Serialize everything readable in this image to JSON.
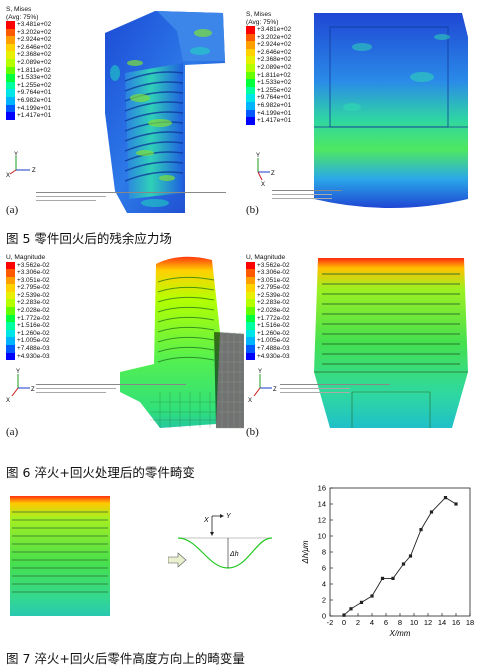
{
  "figure5": {
    "caption": "图 5 零件回火后的残余应力场",
    "panel_a": {
      "letter": "(a)",
      "legend_title": "S, Mises",
      "legend_subtitle": "(Avg: 75%)",
      "legend_values": [
        "+3.481e+02",
        "+3.202e+02",
        "+2.924e+02",
        "+2.646e+02",
        "+2.368e+02",
        "+2.089e+02",
        "+1.811e+02",
        "+1.533e+02",
        "+1.255e+02",
        "+9.764e+01",
        "+6.982e+01",
        "+4.199e+01",
        "+1.417e+01"
      ],
      "axes": {
        "y": "Y",
        "x": "X",
        "z": "Z"
      }
    },
    "panel_b": {
      "letter": "(b)",
      "legend_title": "S, Mises",
      "legend_subtitle": "(Avg: 75%)",
      "legend_values": [
        "+3.481e+02",
        "+3.202e+02",
        "+2.924e+02",
        "+2.646e+02",
        "+2.368e+02",
        "+2.089e+02",
        "+1.811e+02",
        "+1.533e+02",
        "+1.255e+02",
        "+9.764e+01",
        "+6.982e+01",
        "+4.199e+01",
        "+1.417e+01"
      ],
      "axes": {
        "y": "Y",
        "x": "X",
        "z": "Z"
      }
    }
  },
  "figure6": {
    "caption": "图 6 淬火+回火处理后的零件畸变",
    "panel_a": {
      "letter": "(a)",
      "legend_title": "U, Magnitude",
      "legend_values": [
        "+3.562e-02",
        "+3.306e-02",
        "+3.051e-02",
        "+2.795e-02",
        "+2.539e-02",
        "+2.283e-02",
        "+2.028e-02",
        "+1.772e-02",
        "+1.516e-02",
        "+1.260e-02",
        "+1.005e-02",
        "+7.488e-03",
        "+4.930e-03"
      ],
      "axes": {
        "y": "Y",
        "x": "X",
        "z": "Z"
      }
    },
    "panel_b": {
      "letter": "(b)",
      "legend_title": "U, Magnitude",
      "legend_values": [
        "+3.562e-02",
        "+3.306e-02",
        "+3.051e-02",
        "+2.795e-02",
        "+2.539e-02",
        "+2.283e-02",
        "+2.028e-02",
        "+1.772e-02",
        "+1.516e-02",
        "+1.260e-02",
        "+1.005e-02",
        "+7.488e-03",
        "+4.930e-03"
      ],
      "axes": {
        "y": "Y",
        "x": "X",
        "z": "Z"
      }
    }
  },
  "figure7": {
    "caption": "图 7 淬火+回火后零件高度方向上的畸变量",
    "diagram": {
      "axis_x": "X",
      "axis_y": "Y",
      "delta_label": "Δh"
    }
  },
  "legend_colors": [
    "#ff0000",
    "#ff5a00",
    "#ffa000",
    "#ffd200",
    "#e6f000",
    "#b4ff00",
    "#64ff00",
    "#00ff3c",
    "#00ffa0",
    "#00e6e6",
    "#00b4ff",
    "#005aff",
    "#0000ff"
  ],
  "chart_data": {
    "type": "line",
    "xlabel": "X/mm",
    "ylabel": "Δh/μm",
    "xlim": [
      -2,
      18
    ],
    "ylim": [
      0,
      16
    ],
    "xticks": [
      -2,
      0,
      2,
      4,
      6,
      8,
      10,
      12,
      14,
      16,
      18
    ],
    "yticks": [
      0,
      2,
      4,
      6,
      8,
      10,
      12,
      14,
      16
    ],
    "x": [
      0,
      1,
      2.5,
      4,
      5.5,
      7,
      8.5,
      9.5,
      11,
      12.5,
      14.5,
      16
    ],
    "y": [
      0.1,
      0.9,
      1.7,
      2.5,
      4.7,
      4.7,
      6.5,
      7.5,
      10.8,
      13.0,
      14.8,
      14.0
    ]
  }
}
